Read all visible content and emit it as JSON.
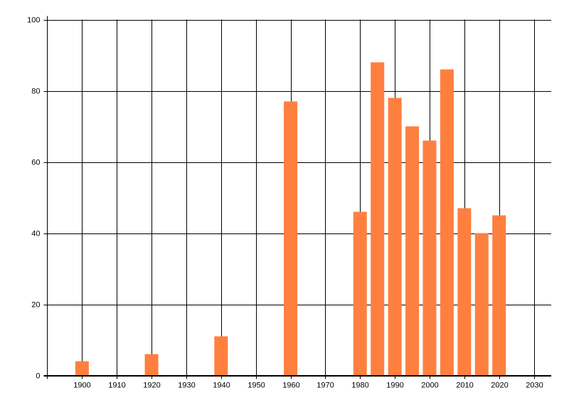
{
  "chart_data": {
    "type": "bar",
    "x": [
      1900,
      1920,
      1940,
      1960,
      1980,
      1985,
      1990,
      1995,
      2000,
      2005,
      2010,
      2015,
      2020
    ],
    "values": [
      4,
      6,
      11,
      77,
      46,
      88,
      78,
      70,
      66,
      86,
      47,
      40,
      45
    ],
    "color": "#ff7f3f",
    "xlim": [
      1890,
      2035
    ],
    "ylim": [
      0,
      100
    ],
    "xticks": [
      1900,
      1910,
      1920,
      1930,
      1940,
      1950,
      1960,
      1970,
      1980,
      1990,
      2000,
      2010,
      2020,
      2030
    ],
    "yticks": [
      0,
      20,
      40,
      60,
      80,
      100
    ],
    "grid": true
  }
}
